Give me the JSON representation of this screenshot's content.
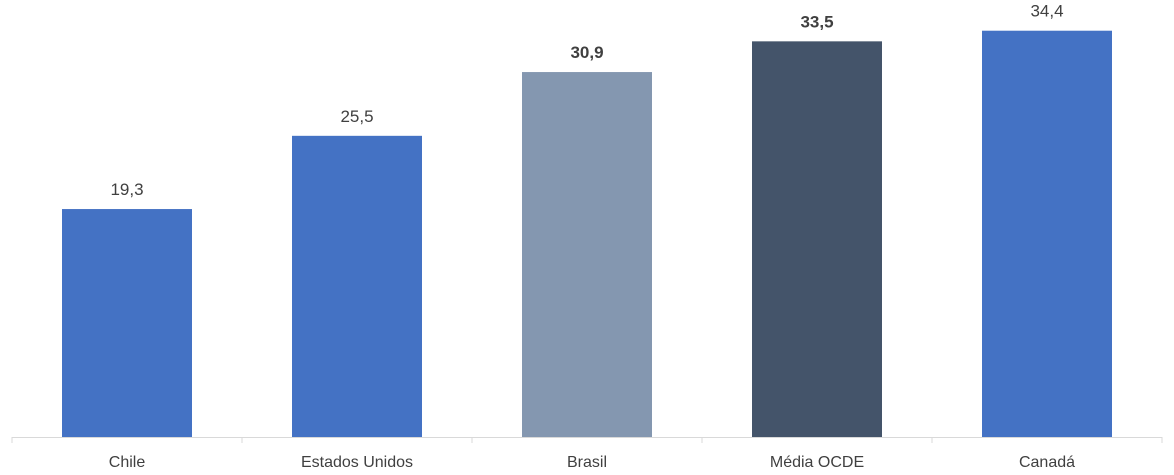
{
  "chart_data": {
    "type": "bar",
    "title": "",
    "xlabel": "",
    "ylabel": "",
    "categories": [
      "Chile",
      "Estados Unidos",
      "Brasil",
      "Média OCDE",
      "Canadá"
    ],
    "values": [
      19.3,
      25.5,
      30.9,
      33.5,
      34.4
    ],
    "data_labels": [
      "19,3",
      "25,5",
      "30,9",
      "33,5",
      "34,4"
    ],
    "bold_labels": [
      false,
      false,
      true,
      true,
      false
    ],
    "colors": [
      "#4472c4",
      "#4472c4",
      "#8497b0",
      "#44546a",
      "#4472c4"
    ],
    "ylim": [
      0,
      37
    ],
    "grid": false,
    "legend": "none"
  }
}
